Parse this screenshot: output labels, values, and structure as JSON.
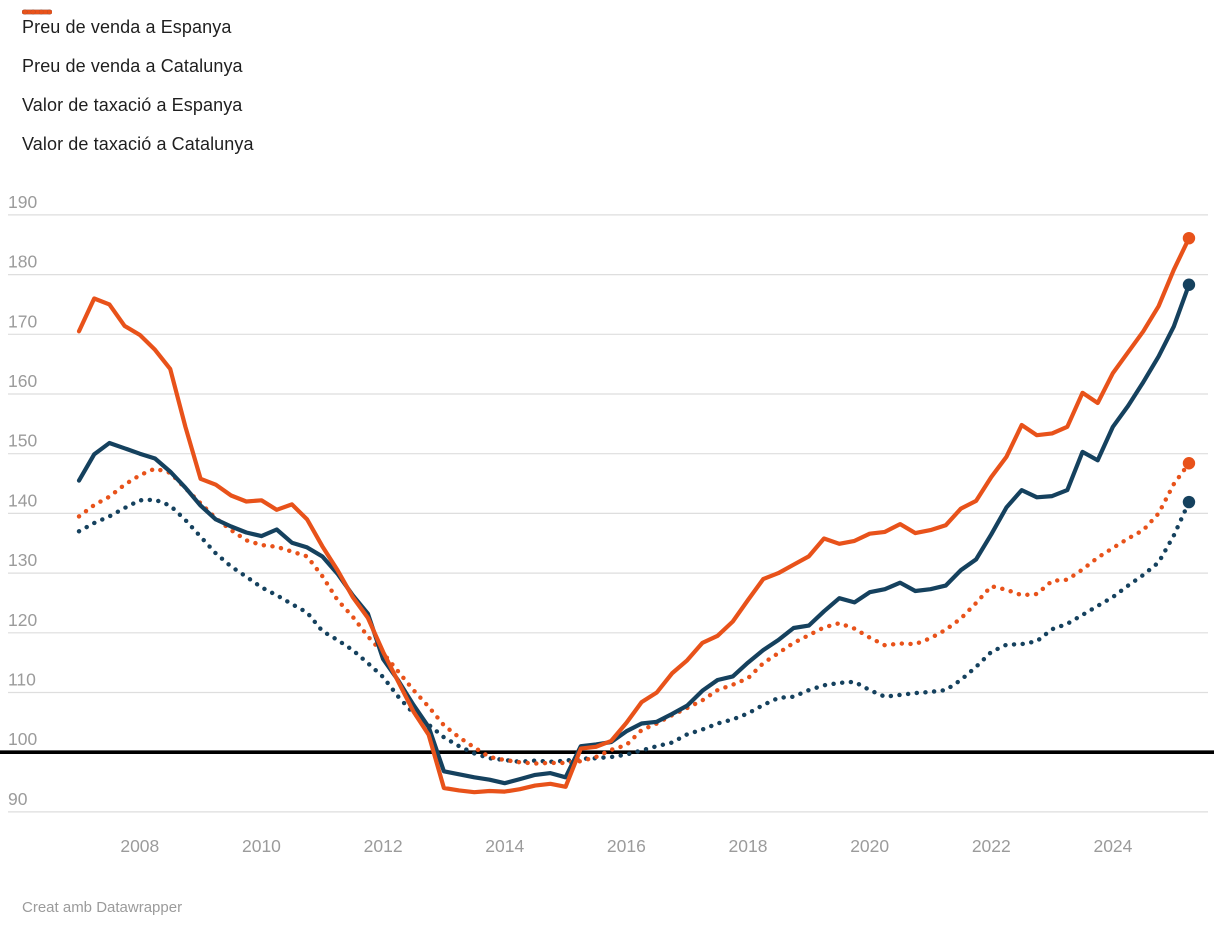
{
  "legend": {
    "items": [
      {
        "label": "Preu de venda a Espanya",
        "style": "solid",
        "color": "#15415e"
      },
      {
        "label": "Preu de venda a Catalunya",
        "style": "solid",
        "color": "#e8521a"
      },
      {
        "label": "Valor de taxació a Espanya",
        "style": "dotted",
        "color": "#15415e"
      },
      {
        "label": "Valor de taxació a Catalunya",
        "style": "dotted",
        "color": "#e8521a"
      }
    ]
  },
  "footer": {
    "credit": "Creat amb Datawrapper"
  },
  "chart_data": {
    "type": "line",
    "title": "",
    "xlabel": "",
    "ylabel": "",
    "x_frequency": "quarterly",
    "x_start": "2007-Q1",
    "x_end": "2025-Q2",
    "points_per_series": 74,
    "xticks": [
      2008,
      2010,
      2012,
      2014,
      2016,
      2018,
      2020,
      2022,
      2024
    ],
    "yticks": [
      90,
      100,
      110,
      120,
      130,
      140,
      150,
      160,
      170,
      180,
      190
    ],
    "ylim": [
      88,
      192
    ],
    "baseline": 100,
    "grid": true,
    "legend_position": "top-left",
    "colors": {
      "espanya": "#15415e",
      "catalunya": "#e8521a",
      "grid": "#dedede",
      "axis_text": "#9b9b9b",
      "baseline": "#000000"
    },
    "series": [
      {
        "name": "Preu de venda a Espanya",
        "style": "solid",
        "color": "#15415e",
        "end_dot": true,
        "values": [
          145.5,
          149.9,
          151.8,
          150.9,
          150.0,
          149.2,
          147.0,
          144.3,
          141.3,
          139.0,
          137.8,
          136.8,
          136.2,
          137.3,
          135.1,
          134.3,
          132.8,
          129.9,
          126.3,
          123.2,
          115.6,
          112.0,
          107.9,
          104.2,
          96.8,
          96.3,
          95.8,
          95.4,
          94.8,
          95.5,
          96.2,
          96.5,
          95.8,
          101.0,
          101.3,
          101.7,
          103.5,
          104.8,
          105.1,
          106.4,
          107.8,
          110.3,
          112.1,
          112.7,
          115.0,
          117.1,
          118.8,
          120.8,
          121.2,
          123.6,
          125.8,
          125.1,
          126.8,
          127.3,
          128.4,
          127.0,
          127.3,
          127.9,
          130.5,
          132.3,
          136.5,
          141.0,
          143.9,
          142.7,
          142.9,
          143.9,
          150.3,
          148.9,
          154.5,
          158.0,
          162.0,
          166.3,
          171.3,
          178.3
        ]
      },
      {
        "name": "Preu de venda a Catalunya",
        "style": "solid",
        "color": "#e8521a",
        "end_dot": true,
        "values": [
          170.5,
          176.0,
          175.0,
          171.4,
          169.9,
          167.4,
          164.2,
          154.5,
          145.8,
          144.8,
          143.0,
          142.0,
          142.2,
          140.6,
          141.5,
          139.0,
          134.5,
          130.5,
          126.0,
          122.5,
          116.8,
          111.8,
          106.8,
          102.9,
          94.0,
          93.6,
          93.3,
          93.5,
          93.4,
          93.8,
          94.4,
          94.7,
          94.2,
          100.6,
          100.9,
          101.9,
          104.9,
          108.4,
          110.0,
          113.2,
          115.4,
          118.3,
          119.5,
          121.9,
          125.5,
          129.0,
          130.0,
          131.4,
          132.8,
          135.8,
          134.9,
          135.4,
          136.6,
          136.9,
          138.2,
          136.7,
          137.2,
          138.0,
          140.8,
          142.1,
          146.1,
          149.5,
          154.8,
          153.1,
          153.4,
          154.5,
          160.2,
          158.5,
          163.5,
          167.0,
          170.5,
          174.7,
          180.8,
          186.1
        ]
      },
      {
        "name": "Valor de taxació a Espanya",
        "style": "dotted",
        "color": "#15415e",
        "end_dot": true,
        "values": [
          137.0,
          138.4,
          139.5,
          140.9,
          142.2,
          142.3,
          141.3,
          138.9,
          136.1,
          133.3,
          131.1,
          129.4,
          127.6,
          126.3,
          124.8,
          123.4,
          120.3,
          118.8,
          117.1,
          114.9,
          112.6,
          109.3,
          106.5,
          104.6,
          102.5,
          101.0,
          99.8,
          99.0,
          98.7,
          98.4,
          98.6,
          98.4,
          98.6,
          98.9,
          99.0,
          99.2,
          99.6,
          100.3,
          101.0,
          101.6,
          103.0,
          103.8,
          104.8,
          105.5,
          106.5,
          107.9,
          109.1,
          109.3,
          110.4,
          111.2,
          111.6,
          111.8,
          110.4,
          109.3,
          109.6,
          109.9,
          110.1,
          110.4,
          112.1,
          114.3,
          116.8,
          118.0,
          118.1,
          118.6,
          120.6,
          121.5,
          123.0,
          124.5,
          126.0,
          127.9,
          129.7,
          131.8,
          136.3,
          141.9
        ]
      },
      {
        "name": "Valor de taxació a Catalunya",
        "style": "dotted",
        "color": "#e8521a",
        "end_dot": true,
        "values": [
          139.5,
          141.4,
          142.8,
          144.8,
          146.4,
          147.5,
          146.8,
          144.2,
          141.7,
          139.2,
          137.2,
          135.5,
          134.7,
          134.4,
          133.6,
          132.8,
          129.5,
          125.5,
          122.7,
          119.4,
          116.6,
          113.5,
          110.4,
          107.6,
          104.5,
          102.5,
          100.8,
          99.2,
          98.7,
          98.3,
          98.1,
          98.2,
          98.2,
          98.5,
          99.2,
          100.4,
          101.2,
          103.7,
          104.8,
          106.2,
          107.4,
          108.7,
          110.4,
          111.3,
          112.4,
          114.9,
          116.6,
          118.3,
          119.6,
          120.9,
          121.6,
          120.7,
          119.2,
          117.9,
          118.2,
          118.1,
          119.1,
          120.5,
          122.4,
          125.0,
          127.8,
          127.2,
          126.3,
          126.5,
          128.7,
          128.9,
          130.6,
          132.6,
          134.2,
          135.8,
          137.2,
          140.0,
          144.9,
          148.4
        ]
      }
    ]
  }
}
